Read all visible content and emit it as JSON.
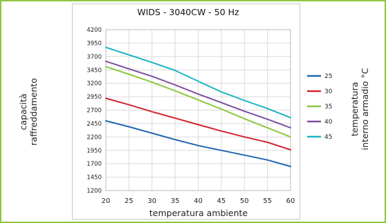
{
  "chart_data": {
    "type": "line",
    "title": "WIDS - 3040CW - 50 Hz",
    "xlabel": "temperatura ambiente",
    "ylabel": [
      "capacità",
      "raffreddamento"
    ],
    "legend_title": [
      "temperatura",
      "interno armadio °C"
    ],
    "legend_position": "right",
    "grid": true,
    "x": [
      20,
      25,
      30,
      35,
      40,
      45,
      50,
      55,
      60
    ],
    "xticks": [
      "20",
      "25",
      "30",
      "35",
      "40",
      "45",
      "50",
      "55",
      "60"
    ],
    "xlim": [
      20,
      60
    ],
    "ylim": [
      1200,
      4200
    ],
    "yticks": [
      "1200",
      "1450",
      "1700",
      "1950",
      "2200",
      "2450",
      "2700",
      "2950",
      "3200",
      "3450",
      "3700",
      "3950",
      "4200"
    ],
    "series": [
      {
        "name": "25",
        "color": "#1f66b0",
        "values": [
          2500,
          2390,
          2270,
          2150,
          2040,
          1950,
          1860,
          1770,
          1650
        ]
      },
      {
        "name": "30",
        "color": "#d1232a",
        "values": [
          2920,
          2800,
          2670,
          2550,
          2430,
          2310,
          2200,
          2100,
          1960
        ]
      },
      {
        "name": "35",
        "color": "#8dc63f",
        "values": [
          3510,
          3370,
          3220,
          3060,
          2890,
          2720,
          2540,
          2370,
          2200
        ]
      },
      {
        "name": "40",
        "color": "#7b4ea0",
        "values": [
          3610,
          3470,
          3330,
          3170,
          3000,
          2840,
          2680,
          2530,
          2370
        ]
      },
      {
        "name": "45",
        "color": "#1bb3c3",
        "values": [
          3870,
          3730,
          3590,
          3440,
          3240,
          3040,
          2880,
          2730,
          2560
        ]
      }
    ]
  }
}
